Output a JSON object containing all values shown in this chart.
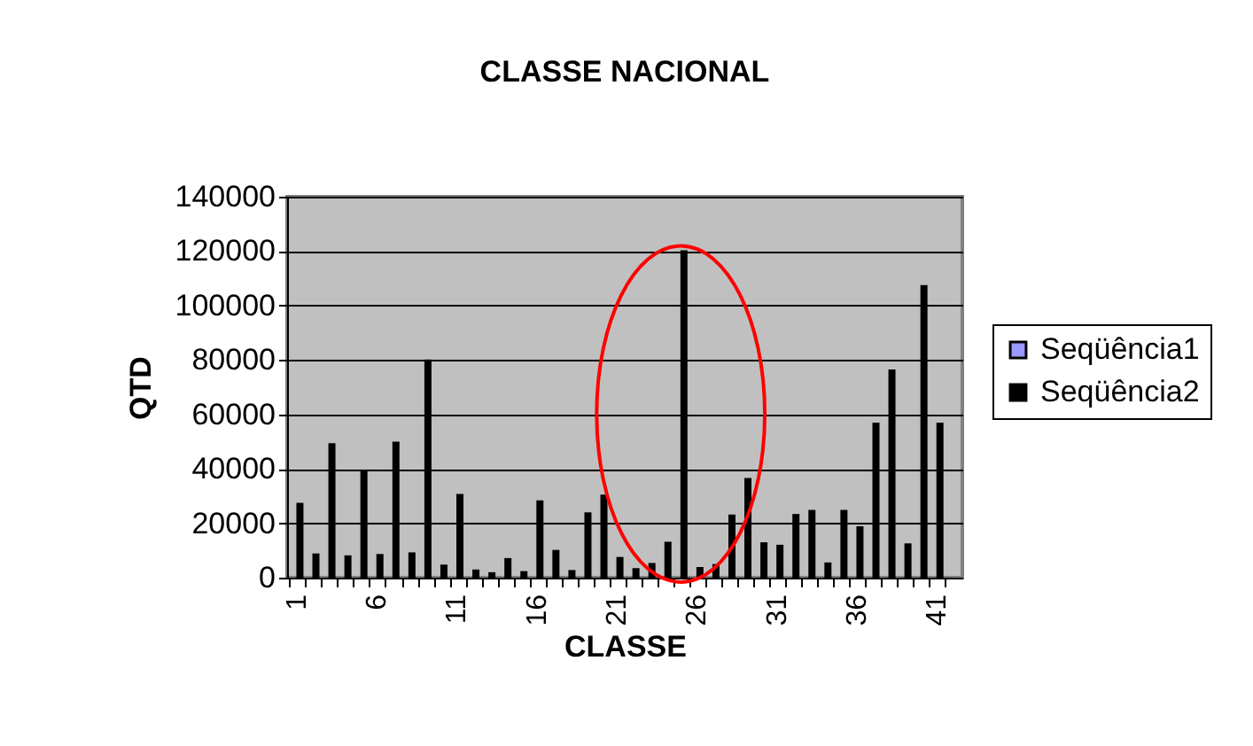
{
  "chart_data": {
    "type": "bar",
    "title": "CLASSE NACIONAL",
    "xlabel": "CLASSE",
    "ylabel": "QTD",
    "categories": [
      "1",
      null,
      null,
      null,
      null,
      "6",
      null,
      null,
      null,
      null,
      "11",
      null,
      null,
      null,
      null,
      "16",
      null,
      null,
      null,
      null,
      "21",
      null,
      null,
      null,
      null,
      "26",
      null,
      null,
      null,
      null,
      "31",
      null,
      null,
      null,
      null,
      "36",
      null,
      null,
      null,
      null,
      "41",
      null
    ],
    "series": [
      {
        "name": "Seqüência1",
        "color": "#9999ff",
        "values": [
          null,
          null,
          null,
          null,
          null,
          null,
          null,
          null,
          null,
          null,
          null,
          null,
          null,
          null,
          null,
          null,
          null,
          null,
          null,
          null,
          null,
          null,
          null,
          null,
          null,
          null,
          null,
          null,
          null,
          null,
          null,
          null,
          null,
          null,
          null,
          null,
          null,
          null,
          null,
          null,
          null,
          null
        ]
      },
      {
        "name": "Seqüência2",
        "color": "#000000",
        "values": [
          27500,
          8900,
          49400,
          8200,
          39400,
          8700,
          50000,
          9300,
          80200,
          4800,
          30800,
          3000,
          2000,
          7200,
          2400,
          28400,
          10200,
          2800,
          24000,
          30500,
          7600,
          3500,
          5400,
          13200,
          120300,
          3900,
          5000,
          23200,
          36600,
          13000,
          12100,
          23400,
          24900,
          5600,
          24900,
          18900,
          57000,
          76500,
          12600,
          107500,
          57000,
          null
        ]
      }
    ],
    "ylim": [
      0,
      140000
    ],
    "yticks": [
      0,
      20000,
      40000,
      60000,
      80000,
      100000,
      120000,
      140000
    ],
    "grid": "y",
    "legend": "right"
  }
}
